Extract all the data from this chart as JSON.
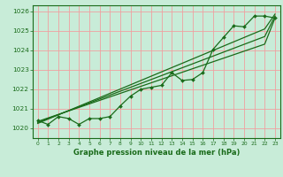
{
  "background_color": "#c8ecd8",
  "grid_color": "#f0a0a0",
  "line_color": "#1a6b1a",
  "xlabel": "Graphe pression niveau de la mer (hPa)",
  "xlim": [
    -0.5,
    23.5
  ],
  "ylim": [
    1019.5,
    1026.3
  ],
  "yticks": [
    1020,
    1021,
    1022,
    1023,
    1024,
    1025,
    1026
  ],
  "xticks": [
    0,
    1,
    2,
    3,
    4,
    5,
    6,
    7,
    8,
    9,
    10,
    11,
    12,
    13,
    14,
    15,
    16,
    17,
    18,
    19,
    20,
    21,
    22,
    23
  ],
  "trend1": [
    1020.35,
    1020.53,
    1020.71,
    1020.89,
    1021.07,
    1021.25,
    1021.43,
    1021.61,
    1021.79,
    1021.97,
    1022.15,
    1022.33,
    1022.51,
    1022.69,
    1022.87,
    1023.05,
    1023.23,
    1023.41,
    1023.59,
    1023.77,
    1023.95,
    1024.13,
    1024.31,
    1025.65
  ],
  "trend2": [
    1020.3,
    1020.5,
    1020.7,
    1020.9,
    1021.1,
    1021.3,
    1021.5,
    1021.7,
    1021.9,
    1022.1,
    1022.3,
    1022.5,
    1022.7,
    1022.9,
    1023.1,
    1023.3,
    1023.5,
    1023.7,
    1023.9,
    1024.1,
    1024.3,
    1024.5,
    1024.7,
    1025.75
  ],
  "trend3": [
    1020.25,
    1020.47,
    1020.69,
    1020.91,
    1021.13,
    1021.35,
    1021.57,
    1021.79,
    1022.01,
    1022.23,
    1022.45,
    1022.67,
    1022.89,
    1023.11,
    1023.33,
    1023.55,
    1023.77,
    1023.99,
    1024.21,
    1024.43,
    1024.65,
    1024.87,
    1025.09,
    1025.85
  ],
  "marker_line": [
    1020.4,
    1020.2,
    1020.6,
    1020.5,
    1020.2,
    1020.5,
    1020.5,
    1020.6,
    1021.15,
    1021.65,
    1022.0,
    1022.1,
    1022.2,
    1022.85,
    1022.45,
    1022.5,
    1022.85,
    1024.05,
    1024.65,
    1025.25,
    1025.2,
    1025.75,
    1025.75,
    1025.65
  ]
}
